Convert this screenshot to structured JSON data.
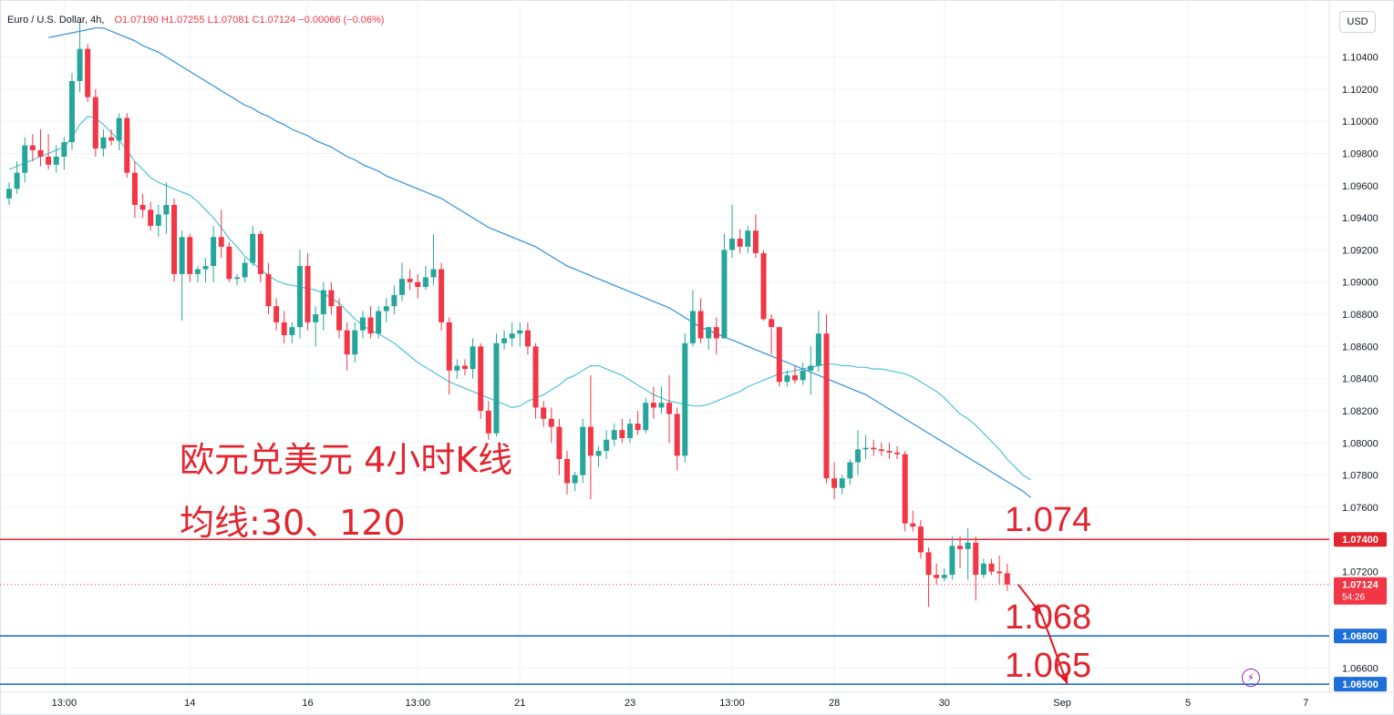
{
  "header": {
    "symbol": "Euro / U.S. Dollar, 4h,",
    "ohlc": "O1.07190  H1.07255  L1.07081  C1.07124  −0.00066 (−0.06%)"
  },
  "currency_button": "USD",
  "annotations": {
    "title": "欧元兑美元 4小时K线",
    "subtitle": "均线:30、120"
  },
  "levels": [
    {
      "label": "1.074",
      "price": 1.074,
      "tag": "1.07400",
      "color": "#e2252f"
    },
    {
      "label": "1.068",
      "price": 1.068,
      "tag": "1.06800",
      "color": "#1e6fd9"
    },
    {
      "label": "1.065",
      "price": 1.065,
      "tag": "1.06500",
      "color": "#1e6fd9"
    }
  ],
  "current_price": {
    "value": "1.07124",
    "countdown": "54:26",
    "color": "#f23645"
  },
  "colors": {
    "up": "#26a69a",
    "down": "#f23645",
    "ma30": "#4dc3d8",
    "ma120": "#2f8fdb",
    "arrow": "#e3141e"
  },
  "chart_data": {
    "type": "candlestick",
    "title": "",
    "y_axis": {
      "ticks": [
        "1.10400",
        "1.10200",
        "1.10000",
        "1.09800",
        "1.09600",
        "1.09400",
        "1.09200",
        "1.09000",
        "1.08800",
        "1.08600",
        "1.08400",
        "1.08200",
        "1.08000",
        "1.07800",
        "1.07600",
        "1.07200",
        "1.06800",
        "1.06600"
      ],
      "range": [
        1.0645,
        1.1072
      ]
    },
    "x_axis": {
      "ticks": [
        "13:00",
        "14",
        "16",
        "13:00",
        "21",
        "23",
        "13:00",
        "28",
        "30",
        "Sep",
        "5",
        "7"
      ],
      "tick_bars": [
        7,
        23,
        38,
        52,
        65,
        79,
        92,
        105,
        119,
        134,
        150,
        165
      ]
    },
    "candles": [
      [
        1.0952,
        1.0962,
        1.0948,
        1.0958
      ],
      [
        1.0958,
        1.0975,
        1.0955,
        1.0968
      ],
      [
        1.0968,
        1.099,
        1.0962,
        1.0985
      ],
      [
        1.0985,
        1.0992,
        1.0975,
        1.0982
      ],
      [
        1.0982,
        1.0995,
        1.0972,
        1.0978
      ],
      [
        1.0978,
        1.0992,
        1.097,
        1.0973
      ],
      [
        1.0973,
        1.0985,
        1.0968,
        1.0978
      ],
      [
        1.0978,
        1.099,
        1.097,
        1.0987
      ],
      [
        1.0987,
        1.103,
        1.0982,
        1.1025
      ],
      [
        1.1025,
        1.1062,
        1.1018,
        1.1045
      ],
      [
        1.1045,
        1.1048,
        1.1012,
        1.1015
      ],
      [
        1.1015,
        1.102,
        1.0978,
        1.0983
      ],
      [
        1.0983,
        1.0995,
        1.0978,
        1.099
      ],
      [
        1.099,
        1.0995,
        1.0985,
        1.0988
      ],
      [
        1.0988,
        1.1005,
        1.0982,
        1.1002
      ],
      [
        1.1002,
        1.1005,
        1.0965,
        1.0968
      ],
      [
        1.0968,
        1.0975,
        1.094,
        1.0948
      ],
      [
        1.0948,
        1.0955,
        1.094,
        1.0945
      ],
      [
        1.0945,
        1.095,
        1.0932,
        1.0935
      ],
      [
        1.0935,
        1.0948,
        1.0928,
        1.0942
      ],
      [
        1.0942,
        1.0962,
        1.093,
        1.0948
      ],
      [
        1.0948,
        1.0952,
        1.09,
        1.0905
      ],
      [
        1.0905,
        1.0932,
        1.0876,
        1.0928
      ],
      [
        1.0928,
        1.093,
        1.09,
        1.0905
      ],
      [
        1.0905,
        1.091,
        1.09,
        1.0908
      ],
      [
        1.0908,
        1.0915,
        1.09,
        1.091
      ],
      [
        1.091,
        1.0935,
        1.09,
        1.0928
      ],
      [
        1.0928,
        1.0945,
        1.0915,
        1.0922
      ],
      [
        1.0922,
        1.0925,
        1.09,
        1.0902
      ],
      [
        1.0902,
        1.0905,
        1.0898,
        1.0903
      ],
      [
        1.0903,
        1.0915,
        1.09,
        1.0912
      ],
      [
        1.0912,
        1.0935,
        1.091,
        1.093
      ],
      [
        1.093,
        1.0932,
        1.09,
        1.0905
      ],
      [
        1.0905,
        1.0912,
        1.088,
        1.0885
      ],
      [
        1.0885,
        1.089,
        1.087,
        1.0875
      ],
      [
        1.0875,
        1.0882,
        1.0862,
        1.0867
      ],
      [
        1.0867,
        1.0875,
        1.0862,
        1.0872
      ],
      [
        1.0872,
        1.092,
        1.0865,
        1.091
      ],
      [
        1.091,
        1.0918,
        1.087,
        1.0875
      ],
      [
        1.0875,
        1.0885,
        1.086,
        1.088
      ],
      [
        1.088,
        1.09,
        1.087,
        1.0895
      ],
      [
        1.0895,
        1.09,
        1.088,
        1.0885
      ],
      [
        1.0885,
        1.089,
        1.0865,
        1.087
      ],
      [
        1.087,
        1.0875,
        1.0845,
        1.0855
      ],
      [
        1.0855,
        1.0875,
        1.085,
        1.087
      ],
      [
        1.087,
        1.0882,
        1.0865,
        1.0878
      ],
      [
        1.0878,
        1.0885,
        1.0865,
        1.0868
      ],
      [
        1.0868,
        1.0885,
        1.0865,
        1.0882
      ],
      [
        1.0882,
        1.089,
        1.0875,
        1.0885
      ],
      [
        1.0885,
        1.0898,
        1.088,
        1.0892
      ],
      [
        1.0892,
        1.0912,
        1.0888,
        1.0902
      ],
      [
        1.0902,
        1.0908,
        1.0895,
        1.09
      ],
      [
        1.09,
        1.0905,
        1.089,
        1.0897
      ],
      [
        1.0897,
        1.091,
        1.0895,
        1.0903
      ],
      [
        1.0903,
        1.093,
        1.0898,
        1.0908
      ],
      [
        1.0908,
        1.0912,
        1.087,
        1.0875
      ],
      [
        1.0875,
        1.0878,
        1.083,
        1.0845
      ],
      [
        1.0845,
        1.0852,
        1.084,
        1.0848
      ],
      [
        1.0848,
        1.0852,
        1.0842,
        1.0846
      ],
      [
        1.0846,
        1.0865,
        1.084,
        1.086
      ],
      [
        1.086,
        1.0862,
        1.0815,
        1.082
      ],
      [
        1.082,
        1.0826,
        1.0802,
        1.0806
      ],
      [
        1.0806,
        1.0868,
        1.0804,
        1.0862
      ],
      [
        1.0862,
        1.087,
        1.0858,
        1.0865
      ],
      [
        1.0865,
        1.0875,
        1.086,
        1.0868
      ],
      [
        1.0868,
        1.0875,
        1.086,
        1.087
      ],
      [
        1.087,
        1.0875,
        1.0855,
        1.086
      ],
      [
        1.086,
        1.0862,
        1.0815,
        1.0822
      ],
      [
        1.0822,
        1.0826,
        1.081,
        1.0815
      ],
      [
        1.0815,
        1.0822,
        1.08,
        1.081
      ],
      [
        1.081,
        1.0815,
        1.078,
        1.079
      ],
      [
        1.079,
        1.0795,
        1.0768,
        1.0775
      ],
      [
        1.0775,
        1.0782,
        1.077,
        1.078
      ],
      [
        1.078,
        1.0815,
        1.0775,
        1.081
      ],
      [
        1.081,
        1.0842,
        1.0765,
        1.0792
      ],
      [
        1.0792,
        1.0798,
        1.0785,
        1.0795
      ],
      [
        1.0795,
        1.0808,
        1.079,
        1.0802
      ],
      [
        1.0802,
        1.0812,
        1.0798,
        1.0808
      ],
      [
        1.0808,
        1.0815,
        1.08,
        1.0803
      ],
      [
        1.0803,
        1.0815,
        1.08,
        1.0812
      ],
      [
        1.0812,
        1.082,
        1.0805,
        1.0808
      ],
      [
        1.0808,
        1.0828,
        1.0806,
        1.0825
      ],
      [
        1.0825,
        1.0835,
        1.0815,
        1.0822
      ],
      [
        1.0822,
        1.0835,
        1.0818,
        1.0825
      ],
      [
        1.0825,
        1.0842,
        1.08,
        1.0818
      ],
      [
        1.0818,
        1.0822,
        1.0783,
        1.0792
      ],
      [
        1.0792,
        1.0868,
        1.0788,
        1.0862
      ],
      [
        1.0862,
        1.0895,
        1.086,
        1.0882
      ],
      [
        1.0882,
        1.089,
        1.0862,
        1.0865
      ],
      [
        1.0865,
        1.0872,
        1.0858,
        1.0872
      ],
      [
        1.0872,
        1.0878,
        1.0855,
        1.0865
      ],
      [
        1.0865,
        1.093,
        1.0865,
        1.092
      ],
      [
        1.092,
        1.0948,
        1.0915,
        1.0927
      ],
      [
        1.0927,
        1.0933,
        1.0918,
        1.0922
      ],
      [
        1.0922,
        1.0935,
        1.0918,
        1.0932
      ],
      [
        1.0932,
        1.0942,
        1.0915,
        1.0918
      ],
      [
        1.0918,
        1.092,
        1.0876,
        1.0877
      ],
      [
        1.0877,
        1.088,
        1.0855,
        1.0872
      ],
      [
        1.0872,
        1.0872,
        1.0835,
        1.0838
      ],
      [
        1.0838,
        1.0845,
        1.0835,
        1.0842
      ],
      [
        1.0842,
        1.0848,
        1.0837,
        1.0839
      ],
      [
        1.0839,
        1.085,
        1.0836,
        1.0845
      ],
      [
        1.0845,
        1.086,
        1.083,
        1.0848
      ],
      [
        1.0848,
        1.0882,
        1.0844,
        1.0868
      ],
      [
        1.0868,
        1.088,
        1.0775,
        1.0778
      ],
      [
        1.0778,
        1.0788,
        1.0765,
        1.0772
      ],
      [
        1.0772,
        1.078,
        1.0768,
        1.0778
      ],
      [
        1.0778,
        1.079,
        1.0774,
        1.0788
      ],
      [
        1.0788,
        1.0808,
        1.078,
        1.0796
      ],
      [
        1.0796,
        1.0805,
        1.079,
        1.0797
      ],
      [
        1.0797,
        1.0802,
        1.0792,
        1.0796
      ],
      [
        1.0796,
        1.08,
        1.0792,
        1.0795
      ],
      [
        1.0795,
        1.08,
        1.079,
        1.0794
      ],
      [
        1.0794,
        1.0798,
        1.079,
        1.0793
      ],
      [
        1.0793,
        1.0795,
        1.0745,
        1.075
      ],
      [
        1.075,
        1.0758,
        1.0745,
        1.0748
      ],
      [
        1.0748,
        1.0752,
        1.0728,
        1.0732
      ],
      [
        1.0732,
        1.0735,
        1.0698,
        1.0718
      ],
      [
        1.0718,
        1.0725,
        1.0712,
        1.0716
      ],
      [
        1.0716,
        1.0722,
        1.0714,
        1.0718
      ],
      [
        1.0718,
        1.0742,
        1.0715,
        1.0736
      ],
      [
        1.0736,
        1.0742,
        1.0722,
        1.0734
      ],
      [
        1.0734,
        1.0747,
        1.0715,
        1.0738
      ],
      [
        1.0738,
        1.0742,
        1.0702,
        1.0718
      ],
      [
        1.0718,
        1.0728,
        1.0716,
        1.0725
      ],
      [
        1.0725,
        1.0728,
        1.0718,
        1.072
      ],
      [
        1.072,
        1.073,
        1.0712,
        1.0719
      ],
      [
        1.0719,
        1.0725,
        1.0708,
        1.0712
      ]
    ],
    "ma30": [
      1.097,
      1.0972,
      1.0974,
      1.0976,
      1.0978,
      1.098,
      1.0982,
      1.0984,
      1.099,
      1.0998,
      1.1003,
      1.1002,
      1.0998,
      1.0993,
      1.0988,
      1.0982,
      1.0975,
      1.097,
      1.0965,
      1.0962,
      1.096,
      1.0958,
      1.0956,
      1.0954,
      1.095,
      1.0945,
      1.094,
      1.0934,
      1.0927,
      1.0922,
      1.0916,
      1.0912,
      1.0908,
      1.0904,
      1.0901,
      1.0899,
      1.0898,
      1.0897,
      1.0896,
      1.0895,
      1.0893,
      1.089,
      1.0887,
      1.0882,
      1.0877,
      1.0873,
      1.087,
      1.0868,
      1.0865,
      1.0862,
      1.0858,
      1.0854,
      1.085,
      1.0847,
      1.0844,
      1.0841,
      1.0838,
      1.0836,
      1.0834,
      1.0832,
      1.083,
      1.0828,
      1.0826,
      1.0824,
      1.0822,
      1.0823,
      1.0826,
      1.0828,
      1.083,
      1.0833,
      1.0836,
      1.084,
      1.0842,
      1.0845,
      1.0848,
      1.0848,
      1.0846,
      1.0844,
      1.0842,
      1.0839,
      1.0836,
      1.0833,
      1.083,
      1.0828,
      1.0826,
      1.0825,
      1.0824,
      1.0823,
      1.0823,
      1.0824,
      1.0826,
      1.0828,
      1.083,
      1.0832,
      1.0835,
      1.0837,
      1.0839,
      1.0841,
      1.0843,
      1.0844,
      1.0845,
      1.0846,
      1.0847,
      1.0848,
      1.0849,
      1.0849,
      1.0848,
      1.0848,
      1.0847,
      1.0847,
      1.0846,
      1.0846,
      1.0845,
      1.0844,
      1.0843,
      1.0841,
      1.0838,
      1.0835,
      1.0832,
      1.0828,
      1.0823,
      1.0818,
      1.0815,
      1.0811,
      1.0806,
      1.0801,
      1.0796,
      1.079,
      1.0785,
      1.078,
      1.0777
    ],
    "ma120": [
      null,
      null,
      null,
      null,
      null,
      1.1052,
      1.1053,
      1.1054,
      1.1055,
      1.1056,
      1.1057,
      1.1058,
      1.1058,
      1.1056,
      1.1054,
      1.1052,
      1.105,
      1.1047,
      1.1045,
      1.1043,
      1.104,
      1.1037,
      1.1034,
      1.1031,
      1.1028,
      1.1025,
      1.1022,
      1.1019,
      1.1016,
      1.1013,
      1.101,
      1.1008,
      1.1005,
      1.1003,
      1.1,
      1.0998,
      1.0995,
      1.0993,
      1.0991,
      1.0988,
      1.0986,
      1.0984,
      1.0981,
      1.0978,
      1.0976,
      1.0973,
      1.0971,
      1.0969,
      1.0966,
      1.0964,
      1.0962,
      1.096,
      1.0958,
      1.0956,
      1.0954,
      1.0952,
      1.0949,
      1.0946,
      1.0943,
      1.094,
      1.0937,
      1.0934,
      1.0932,
      1.093,
      1.0928,
      1.0926,
      1.0924,
      1.0922,
      1.0919,
      1.0916,
      1.0913,
      1.091,
      1.0908,
      1.0906,
      1.0904,
      1.0902,
      1.09,
      1.0898,
      1.0896,
      1.0894,
      1.0892,
      1.089,
      1.0888,
      1.0886,
      1.0884,
      1.0881,
      1.0878,
      1.0875,
      1.0872,
      1.087,
      1.0868,
      1.0866,
      1.0864,
      1.0862,
      1.086,
      1.0858,
      1.0856,
      1.0854,
      1.0852,
      1.085,
      1.0848,
      1.0846,
      1.0844,
      1.0842,
      1.084,
      1.0838,
      1.0836,
      1.0834,
      1.0832,
      1.083,
      1.0827,
      1.0824,
      1.0821,
      1.0818,
      1.0815,
      1.0812,
      1.0809,
      1.0806,
      1.0803,
      1.08,
      1.0797,
      1.0794,
      1.0791,
      1.0788,
      1.0785,
      1.0782,
      1.0779,
      1.0776,
      1.0773,
      1.077,
      1.0766
    ]
  }
}
